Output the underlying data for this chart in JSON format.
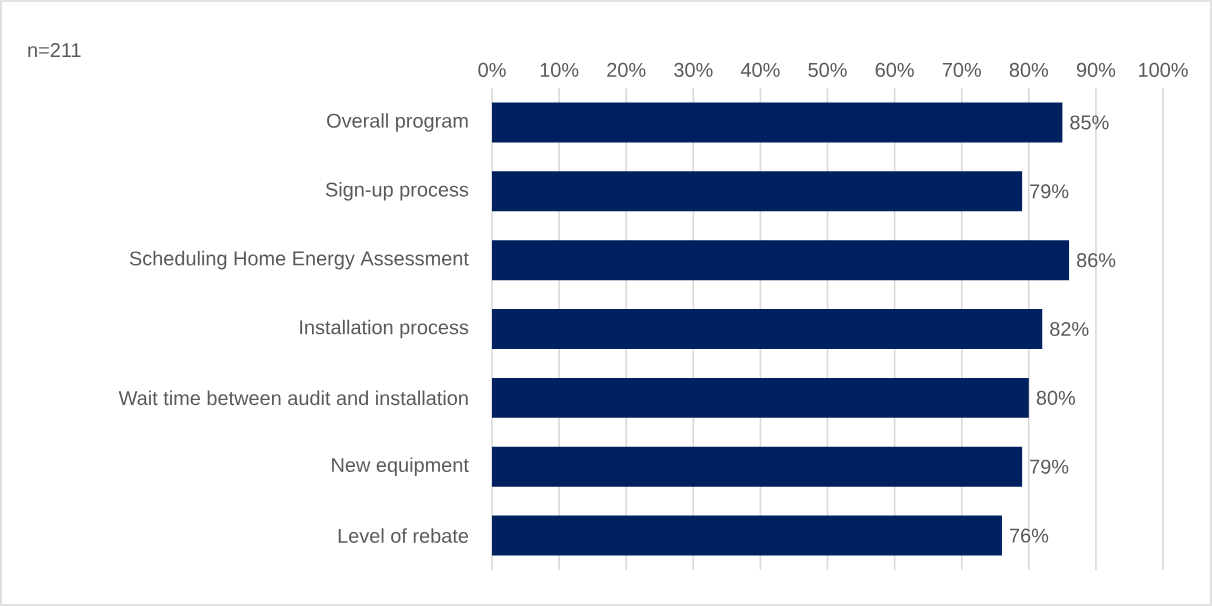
{
  "chart_data": {
    "type": "bar",
    "orientation": "horizontal",
    "categories": [
      "Overall program",
      "Sign-up process",
      "Scheduling Home Energy Assessment",
      "Installation process",
      "Wait time between audit and installation",
      "New equipment",
      "Level of rebate"
    ],
    "values": [
      85,
      79,
      86,
      82,
      80,
      79,
      76
    ],
    "value_labels": [
      "85%",
      "79%",
      "86%",
      "82%",
      "80%",
      "79%",
      "76%"
    ],
    "color": "#002060",
    "xlim": [
      0,
      100
    ],
    "xticks": [
      {
        "value": 0,
        "label": "0%"
      },
      {
        "value": 10,
        "label": "10%"
      },
      {
        "value": 20,
        "label": "20%"
      },
      {
        "value": 30,
        "label": "30%"
      },
      {
        "value": 40,
        "label": "40%"
      },
      {
        "value": 50,
        "label": "50%"
      },
      {
        "value": 60,
        "label": "60%"
      },
      {
        "value": 70,
        "label": "70%"
      },
      {
        "value": 80,
        "label": "80%"
      },
      {
        "value": 90,
        "label": "90%"
      },
      {
        "value": 100,
        "label": "100%"
      }
    ],
    "grid": "x",
    "annotations": [
      "n=211"
    ]
  }
}
